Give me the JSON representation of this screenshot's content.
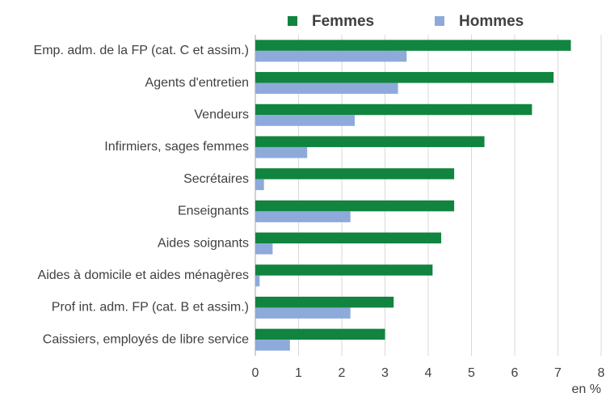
{
  "chart_data": {
    "type": "hbar",
    "categories": [
      "Emp. adm. de la FP (cat. C et assim.)",
      "Agents d'entretien",
      "Vendeurs",
      "Infirmiers, sages femmes",
      "Secrétaires",
      "Enseignants",
      "Aides soignants",
      "Aides à domicile et aides ménagères",
      "Prof int. adm. FP (cat. B et assim.)",
      "Caissiers, employés de libre service"
    ],
    "series": [
      {
        "name": "Femmes",
        "color": "#11843f",
        "values": [
          7.3,
          6.9,
          6.4,
          5.3,
          4.6,
          4.6,
          4.3,
          4.1,
          3.2,
          3.0
        ]
      },
      {
        "name": "Hommes",
        "color": "#8eaadb",
        "values": [
          3.5,
          3.3,
          2.3,
          1.2,
          0.2,
          2.2,
          0.4,
          0.1,
          2.2,
          0.8
        ]
      }
    ],
    "xlabel": "en %",
    "xlim": [
      0,
      8
    ],
    "xticks": [
      0,
      1,
      2,
      3,
      4,
      5,
      6,
      7,
      8
    ],
    "grid": true,
    "legend": "top"
  }
}
